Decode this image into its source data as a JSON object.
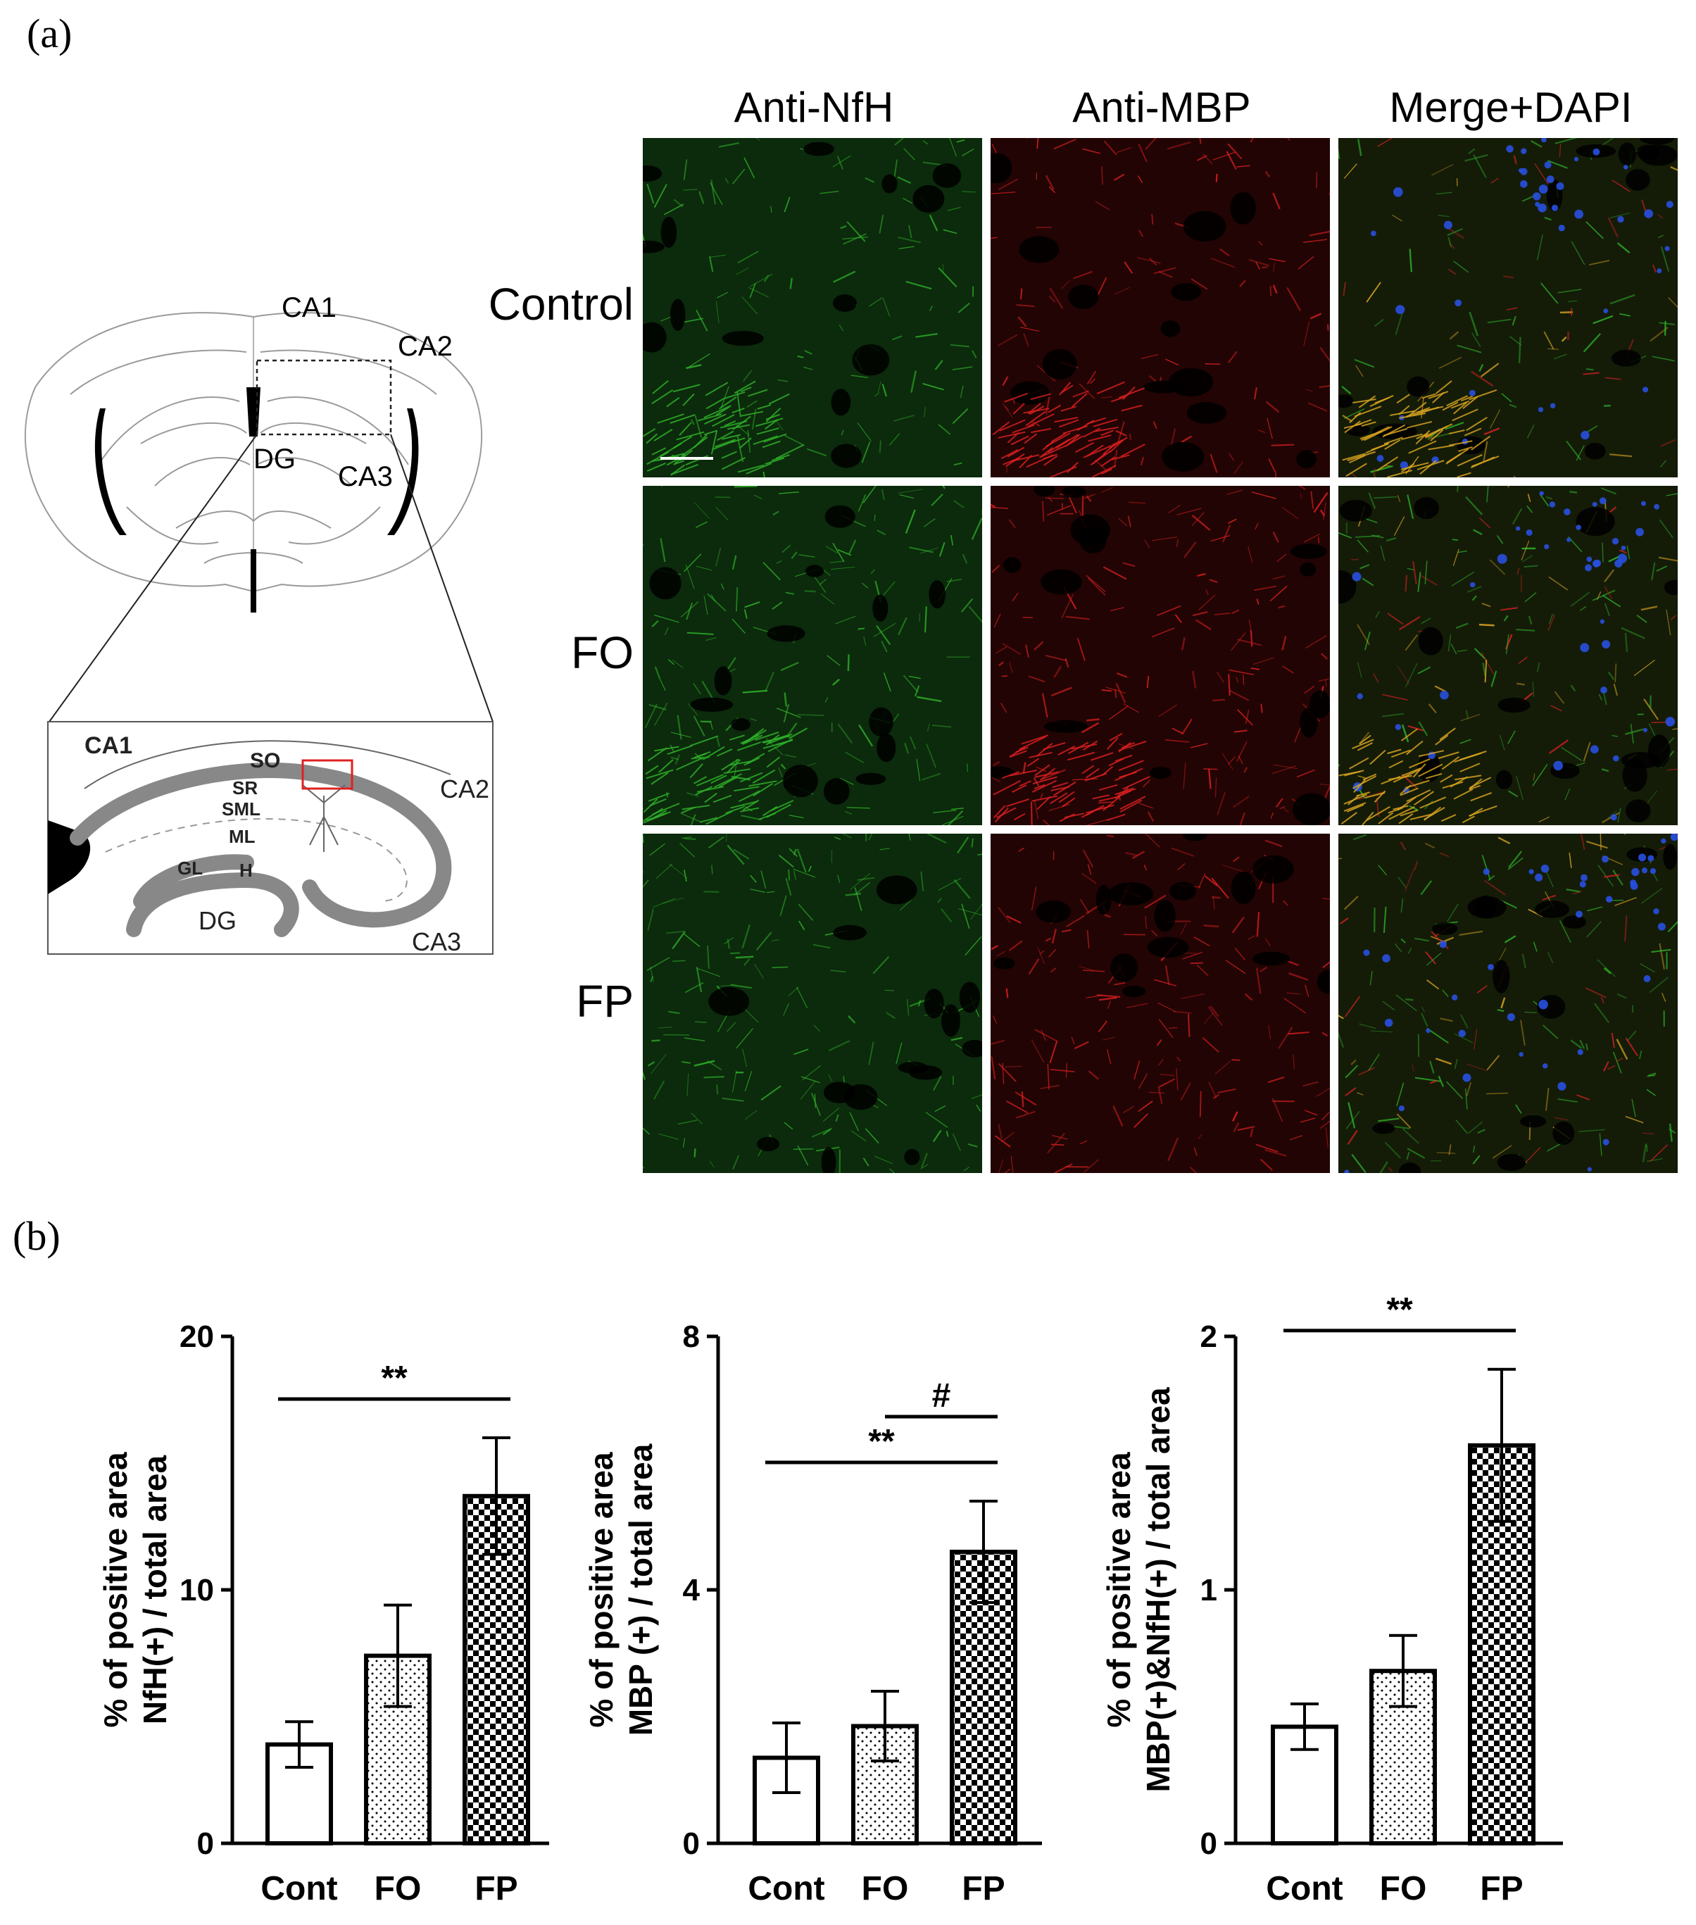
{
  "panel_a": {
    "label": "(a)",
    "columns": [
      "Anti-NfH",
      "Anti-MBP",
      "Merge+DAPI"
    ],
    "rows": [
      "Control",
      "FO",
      "FP"
    ],
    "stain_colors": {
      "nfh": "#2fb52a",
      "mbp": "#e02020",
      "dapi": "#2850e0",
      "merge": "#e0a820"
    },
    "brain_labels": {
      "ca1": "CA1",
      "ca2": "CA2",
      "ca3": "CA3",
      "dg": "DG"
    },
    "hippo_labels": {
      "ca1": "CA1",
      "ca2": "CA2",
      "ca3": "CA3",
      "dg": "DG",
      "so": "SO",
      "sr": "SR",
      "sml": "SML",
      "ml": "ML",
      "gl": "GL",
      "h": "H"
    }
  },
  "panel_b": {
    "label": "(b)"
  },
  "chart_data": [
    {
      "type": "bar",
      "categories": [
        "Cont",
        "FO",
        "FP"
      ],
      "values": [
        3.9,
        7.4,
        13.7
      ],
      "errors": [
        0.9,
        2.0,
        2.3
      ],
      "patterns": [
        "open",
        "dotted",
        "checker"
      ],
      "ylabel_line1": "% of positive area",
      "ylabel_line2": "NfH(+) / total area",
      "ylim": [
        0,
        20
      ],
      "yticks": [
        "0",
        "10",
        "20"
      ],
      "significance": [
        {
          "from": 0,
          "to": 2,
          "label": "**"
        }
      ]
    },
    {
      "type": "bar",
      "categories": [
        "Cont",
        "FO",
        "FP"
      ],
      "values": [
        1.35,
        1.85,
        4.6
      ],
      "errors": [
        0.55,
        0.55,
        0.8
      ],
      "patterns": [
        "open",
        "dotted",
        "checker"
      ],
      "ylabel_line1": "% of positive area",
      "ylabel_line2": "MBP (+) / total area",
      "ylim": [
        0,
        8
      ],
      "yticks": [
        "0",
        "4",
        "8"
      ],
      "significance": [
        {
          "from": 0,
          "to": 2,
          "label": "**"
        },
        {
          "from": 1,
          "to": 2,
          "label": "#"
        }
      ]
    },
    {
      "type": "bar",
      "categories": [
        "Cont",
        "FO",
        "FP"
      ],
      "values": [
        0.46,
        0.68,
        1.57
      ],
      "errors": [
        0.09,
        0.14,
        0.3
      ],
      "patterns": [
        "open",
        "dotted",
        "checker"
      ],
      "ylabel_line1": "% of positive area",
      "ylabel_line2": "MBP(+)&NfH(+) / total area",
      "ylim": [
        0,
        2
      ],
      "yticks": [
        "0",
        "1",
        "2"
      ],
      "significance": [
        {
          "from": 0,
          "to": 2,
          "label": "**"
        },
        {
          "from": 1,
          "to": 2,
          "label": "#"
        }
      ]
    }
  ]
}
